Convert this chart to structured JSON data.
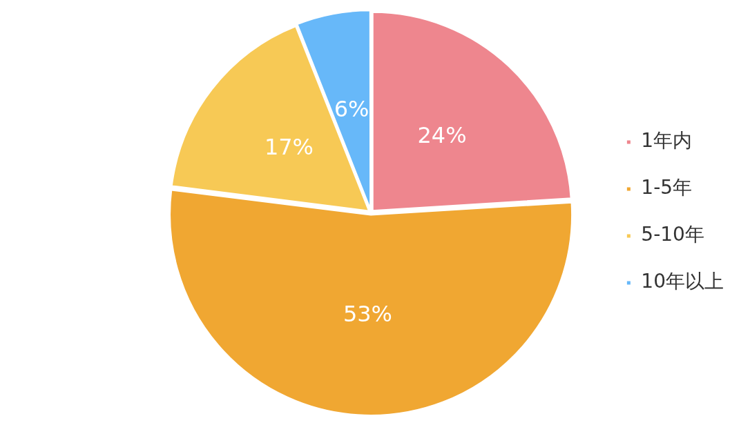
{
  "chart_data": {
    "type": "pie",
    "categories": [
      "1年内",
      "1-5年",
      "5-10年",
      "10年以上"
    ],
    "values": [
      24,
      53,
      17,
      6
    ],
    "colors": [
      "#ee868e",
      "#f0a732",
      "#f7c955",
      "#67b8f9"
    ],
    "value_labels": [
      "24%",
      "53%",
      "17%",
      "6%"
    ],
    "legend": "right"
  }
}
